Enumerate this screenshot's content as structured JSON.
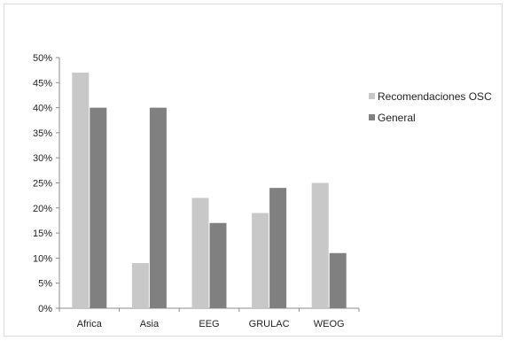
{
  "chart_data": {
    "type": "bar",
    "categories": [
      "Africa",
      "Asia",
      "EEG",
      "GRULAC",
      "WEOG"
    ],
    "series": [
      {
        "name": "Recomendaciones OSC",
        "values": [
          47,
          9,
          22,
          19,
          25
        ],
        "color": "#c8c8c8"
      },
      {
        "name": "General",
        "values": [
          40,
          40,
          17,
          24,
          11
        ],
        "color": "#808080"
      }
    ],
    "y_ticks": [
      "0%",
      "5%",
      "10%",
      "15%",
      "20%",
      "25%",
      "30%",
      "35%",
      "40%",
      "45%",
      "50%"
    ],
    "ylim": [
      0,
      50
    ],
    "grid": false,
    "legend_position": "right"
  }
}
